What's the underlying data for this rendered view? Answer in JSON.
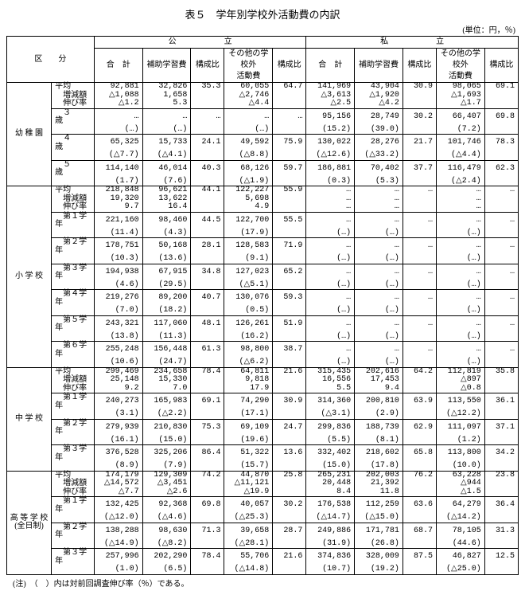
{
  "title": "表５　学年別学校外活動費の内訳",
  "unit": "(単位：円，％)",
  "note": "(注)　（　）内は対前回調査伸び率（％）である。",
  "head": {
    "kubun": "区　　分",
    "public": "公　　　　　　立",
    "private": "私　　　　　　立",
    "goukei": "合　計",
    "hojyo": "補助学習費",
    "hojyo_ratio": "構成比",
    "sonota": "その他の学校外\n活動費",
    "sonota_ratio": "構成比"
  },
  "categories": [
    {
      "name": "幼 稚 園",
      "avg": {
        "label1": "平均",
        "label2": "増減額",
        "label3": "伸び率",
        "pub": [
          "92,881",
          "△1,088",
          "△1.2"
        ],
        "ph": [
          "32,826",
          "1,658",
          "5.3"
        ],
        "phr": [
          "35.3",
          "",
          ""
        ],
        "ps": [
          "60,055",
          "△2,746",
          "△4.4"
        ],
        "psr": [
          "64.7",
          "",
          ""
        ],
        "pri": [
          "141,969",
          "△3,613",
          "△2.5"
        ],
        "prh": [
          "43,904",
          "△1,920",
          "△4.2"
        ],
        "prhr": [
          "30.9",
          "",
          ""
        ],
        "prs": [
          "98,065",
          "△1,693",
          "△1.7"
        ],
        "prsr": [
          "69.1",
          "",
          ""
        ]
      },
      "rows": [
        {
          "l": "３　　歳",
          "pub": [
            "…",
            "(…)"
          ],
          "ph": [
            "…",
            "(…)"
          ],
          "phr": [
            "…",
            ""
          ],
          "ps": [
            "…",
            "(…)"
          ],
          "psr": [
            "…",
            ""
          ],
          "pri": [
            "95,156",
            "(15.2)"
          ],
          "prh": [
            "28,749",
            "(39.0)"
          ],
          "prhr": [
            "30.2",
            ""
          ],
          "prs": [
            "66,407",
            "(7.2)"
          ],
          "prsr": [
            "69.8",
            ""
          ]
        },
        {
          "l": "４　　歳",
          "pub": [
            "65,325",
            "(△7.7)"
          ],
          "ph": [
            "15,733",
            "(△4.1)"
          ],
          "phr": [
            "24.1",
            ""
          ],
          "ps": [
            "49,592",
            "(△8.8)"
          ],
          "psr": [
            "75.9",
            ""
          ],
          "pri": [
            "130,022",
            "(△12.6)"
          ],
          "prh": [
            "28,276",
            "(△33.2)"
          ],
          "prhr": [
            "21.7",
            ""
          ],
          "prs": [
            "101,746",
            "(△4.4)"
          ],
          "prsr": [
            "78.3",
            ""
          ]
        },
        {
          "l": "５　　歳",
          "pub": [
            "114,140",
            "(1.7)"
          ],
          "ph": [
            "46,014",
            "(7.6)"
          ],
          "phr": [
            "40.3",
            ""
          ],
          "ps": [
            "68,126",
            "(△1.9)"
          ],
          "psr": [
            "59.7",
            ""
          ],
          "pri": [
            "186,881",
            "(0.3)"
          ],
          "prh": [
            "70,402",
            "(5.3)"
          ],
          "prhr": [
            "37.7",
            ""
          ],
          "prs": [
            "116,479",
            "(△2.4)"
          ],
          "prsr": [
            "62.3",
            ""
          ]
        }
      ]
    },
    {
      "name": "小 学 校",
      "avg": {
        "label1": "平均",
        "label2": "増減額",
        "label3": "伸び率",
        "pub": [
          "218,848",
          "19,320",
          "9.7"
        ],
        "ph": [
          "96,621",
          "13,622",
          "16.4"
        ],
        "phr": [
          "44.1",
          "",
          ""
        ],
        "ps": [
          "122,227",
          "5,698",
          "4.9"
        ],
        "psr": [
          "55.9",
          "",
          ""
        ],
        "pri": [
          "…",
          "…",
          "…"
        ],
        "prh": [
          "…",
          "…",
          "…"
        ],
        "prhr": [
          "…",
          "",
          ""
        ],
        "prs": [
          "…",
          "…",
          "…"
        ],
        "prsr": [
          "…",
          "",
          ""
        ]
      },
      "rows": [
        {
          "l": "第１学年",
          "pub": [
            "221,160",
            "(11.4)"
          ],
          "ph": [
            "98,460",
            "(4.3)"
          ],
          "phr": [
            "44.5",
            ""
          ],
          "ps": [
            "122,700",
            "(17.9)"
          ],
          "psr": [
            "55.5",
            ""
          ],
          "pri": [
            "…",
            "(…)"
          ],
          "prh": [
            "…",
            "(…)"
          ],
          "prhr": [
            "…",
            ""
          ],
          "prs": [
            "…",
            "(…)"
          ],
          "prsr": [
            "…",
            ""
          ]
        },
        {
          "l": "第２学年",
          "pub": [
            "178,751",
            "(10.3)"
          ],
          "ph": [
            "50,168",
            "(13.6)"
          ],
          "phr": [
            "28.1",
            ""
          ],
          "ps": [
            "128,583",
            "(9.1)"
          ],
          "psr": [
            "71.9",
            ""
          ],
          "pri": [
            "…",
            "(…)"
          ],
          "prh": [
            "…",
            "(…)"
          ],
          "prhr": [
            "…",
            ""
          ],
          "prs": [
            "…",
            "(…)"
          ],
          "prsr": [
            "…",
            ""
          ]
        },
        {
          "l": "第３学年",
          "pub": [
            "194,938",
            "(4.6)"
          ],
          "ph": [
            "67,915",
            "(29.5)"
          ],
          "phr": [
            "34.8",
            ""
          ],
          "ps": [
            "127,023",
            "(△5.1)"
          ],
          "psr": [
            "65.2",
            ""
          ],
          "pri": [
            "…",
            "(…)"
          ],
          "prh": [
            "…",
            "(…)"
          ],
          "prhr": [
            "…",
            ""
          ],
          "prs": [
            "…",
            "(…)"
          ],
          "prsr": [
            "…",
            ""
          ]
        },
        {
          "l": "第４学年",
          "pub": [
            "219,276",
            "(7.0)"
          ],
          "ph": [
            "89,200",
            "(18.2)"
          ],
          "phr": [
            "40.7",
            ""
          ],
          "ps": [
            "130,076",
            "(0.5)"
          ],
          "psr": [
            "59.3",
            ""
          ],
          "pri": [
            "…",
            "(…)"
          ],
          "prh": [
            "…",
            "(…)"
          ],
          "prhr": [
            "…",
            ""
          ],
          "prs": [
            "…",
            "(…)"
          ],
          "prsr": [
            "…",
            ""
          ]
        },
        {
          "l": "第５学年",
          "pub": [
            "243,321",
            "(13.8)"
          ],
          "ph": [
            "117,060",
            "(11.3)"
          ],
          "phr": [
            "48.1",
            ""
          ],
          "ps": [
            "126,261",
            "(16.2)"
          ],
          "psr": [
            "51.9",
            ""
          ],
          "pri": [
            "…",
            "(…)"
          ],
          "prh": [
            "…",
            "(…)"
          ],
          "prhr": [
            "…",
            ""
          ],
          "prs": [
            "…",
            "(…)"
          ],
          "prsr": [
            "…",
            ""
          ]
        },
        {
          "l": "第６学年",
          "pub": [
            "255,248",
            "(10.6)"
          ],
          "ph": [
            "156,448",
            "(24.7)"
          ],
          "phr": [
            "61.3",
            ""
          ],
          "ps": [
            "98,800",
            "(△6.2)"
          ],
          "psr": [
            "38.7",
            ""
          ],
          "pri": [
            "…",
            "(…)"
          ],
          "prh": [
            "…",
            "(…)"
          ],
          "prhr": [
            "…",
            ""
          ],
          "prs": [
            "…",
            "(…)"
          ],
          "prsr": [
            "…",
            ""
          ]
        }
      ]
    },
    {
      "name": "中 学 校",
      "avg": {
        "label1": "平均",
        "label2": "増減額",
        "label3": "伸び率",
        "pub": [
          "299,469",
          "25,148",
          "9.2"
        ],
        "ph": [
          "234,658",
          "15,330",
          "7.0"
        ],
        "phr": [
          "78.4",
          "",
          ""
        ],
        "ps": [
          "64,811",
          "9,818",
          "17.9"
        ],
        "psr": [
          "21.6",
          "",
          ""
        ],
        "pri": [
          "315,435",
          "16,556",
          "5.5"
        ],
        "prh": [
          "202,616",
          "17,453",
          "9.4"
        ],
        "prhr": [
          "64.2",
          "",
          ""
        ],
        "prs": [
          "112,819",
          "△897",
          "△0.8"
        ],
        "prsr": [
          "35.8",
          "",
          ""
        ]
      },
      "rows": [
        {
          "l": "第１学年",
          "pub": [
            "240,273",
            "(3.1)"
          ],
          "ph": [
            "165,983",
            "(△2.2)"
          ],
          "phr": [
            "69.1",
            ""
          ],
          "ps": [
            "74,290",
            "(17.1)"
          ],
          "psr": [
            "30.9",
            ""
          ],
          "pri": [
            "314,360",
            "(△3.1)"
          ],
          "prh": [
            "200,810",
            "(2.9)"
          ],
          "prhr": [
            "63.9",
            ""
          ],
          "prs": [
            "113,550",
            "(△12.2)"
          ],
          "prsr": [
            "36.1",
            ""
          ]
        },
        {
          "l": "第２学年",
          "pub": [
            "279,939",
            "(16.1)"
          ],
          "ph": [
            "210,830",
            "(15.0)"
          ],
          "phr": [
            "75.3",
            ""
          ],
          "ps": [
            "69,109",
            "(19.6)"
          ],
          "psr": [
            "24.7",
            ""
          ],
          "pri": [
            "299,836",
            "(5.5)"
          ],
          "prh": [
            "188,739",
            "(8.1)"
          ],
          "prhr": [
            "62.9",
            ""
          ],
          "prs": [
            "111,097",
            "(1.2)"
          ],
          "prsr": [
            "37.1",
            ""
          ]
        },
        {
          "l": "第３学年",
          "pub": [
            "376,528",
            "(8.9)"
          ],
          "ph": [
            "325,206",
            "(7.9)"
          ],
          "phr": [
            "86.4",
            ""
          ],
          "ps": [
            "51,322",
            "(15.7)"
          ],
          "psr": [
            "13.6",
            ""
          ],
          "pri": [
            "332,402",
            "(15.0)"
          ],
          "prh": [
            "218,602",
            "(17.8)"
          ],
          "prhr": [
            "65.8",
            ""
          ],
          "prs": [
            "113,800",
            "(10.0)"
          ],
          "prsr": [
            "34.2",
            ""
          ]
        }
      ]
    },
    {
      "name": "高 等 学 校\n(全日制)",
      "avg": {
        "label1": "平均",
        "label2": "増減額",
        "label3": "伸び率",
        "pub": [
          "174,179",
          "△14,572",
          "△7.7"
        ],
        "ph": [
          "129,309",
          "△3,451",
          "△2.6"
        ],
        "phr": [
          "74.2",
          "",
          ""
        ],
        "ps": [
          "44,870",
          "△11,121",
          "△19.9"
        ],
        "psr": [
          "25.8",
          "",
          ""
        ],
        "pri": [
          "265,231",
          "20,448",
          "8.4"
        ],
        "prh": [
          "202,003",
          "21,392",
          "11.8"
        ],
        "prhr": [
          "76.2",
          "",
          ""
        ],
        "prs": [
          "63,228",
          "△944",
          "△1.5"
        ],
        "prsr": [
          "23.8",
          "",
          ""
        ]
      },
      "rows": [
        {
          "l": "第１学年",
          "pub": [
            "132,425",
            "(△12.0)"
          ],
          "ph": [
            "92,368",
            "(△4.6)"
          ],
          "phr": [
            "69.8",
            ""
          ],
          "ps": [
            "40,057",
            "(△25.3)"
          ],
          "psr": [
            "30.2",
            ""
          ],
          "pri": [
            "176,538",
            "(△14.7)"
          ],
          "prh": [
            "112,259",
            "(△15.0)"
          ],
          "prhr": [
            "63.6",
            ""
          ],
          "prs": [
            "64,279",
            "(△14.2)"
          ],
          "prsr": [
            "36.4",
            ""
          ]
        },
        {
          "l": "第２学年",
          "pub": [
            "138,288",
            "(△14.9)"
          ],
          "ph": [
            "98,630",
            "(△8.2)"
          ],
          "phr": [
            "71.3",
            ""
          ],
          "ps": [
            "39,658",
            "(△28.1)"
          ],
          "psr": [
            "28.7",
            ""
          ],
          "pri": [
            "249,886",
            "(31.9)"
          ],
          "prh": [
            "171,781",
            "(26.8)"
          ],
          "prhr": [
            "68.7",
            ""
          ],
          "prs": [
            "78,105",
            "(44.6)"
          ],
          "prsr": [
            "31.3",
            ""
          ]
        },
        {
          "l": "第３学年",
          "pub": [
            "257,996",
            "(1.0)"
          ],
          "ph": [
            "202,290",
            "(6.5)"
          ],
          "phr": [
            "78.4",
            ""
          ],
          "ps": [
            "55,706",
            "(△14.8)"
          ],
          "psr": [
            "21.6",
            ""
          ],
          "pri": [
            "374,836",
            "(10.7)"
          ],
          "prh": [
            "328,009",
            "(19.2)"
          ],
          "prhr": [
            "87.5",
            ""
          ],
          "prs": [
            "46,827",
            "(△25.0)"
          ],
          "prsr": [
            "12.5",
            ""
          ]
        }
      ]
    }
  ]
}
